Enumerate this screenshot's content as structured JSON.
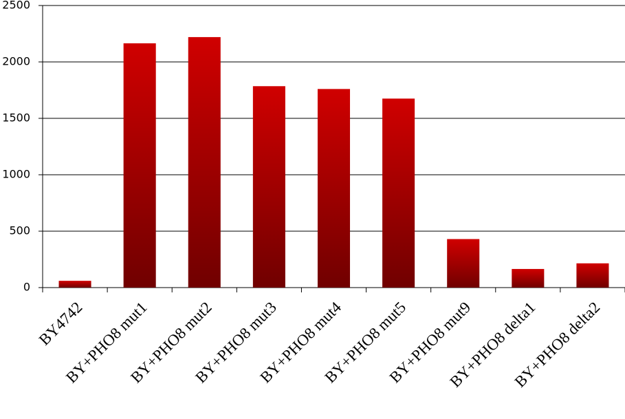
{
  "chart_data": {
    "type": "bar",
    "categories": [
      "BY4742",
      "BY+PHO8 mut1",
      "BY+PHO8 mut2",
      "BY+PHO8 mut3",
      "BY+PHO8 mut4",
      "BY+PHO8 mut5",
      "BY+PHO8 mut9",
      "BY+PHO8 delta1",
      "BY+PHO8 delta2"
    ],
    "values": [
      60,
      2165,
      2220,
      1785,
      1760,
      1675,
      430,
      165,
      215
    ],
    "color": "#d00000",
    "ylim": [
      0,
      2500
    ],
    "yticks": [
      0,
      500,
      1000,
      1500,
      2000,
      2500
    ],
    "grid": true
  }
}
